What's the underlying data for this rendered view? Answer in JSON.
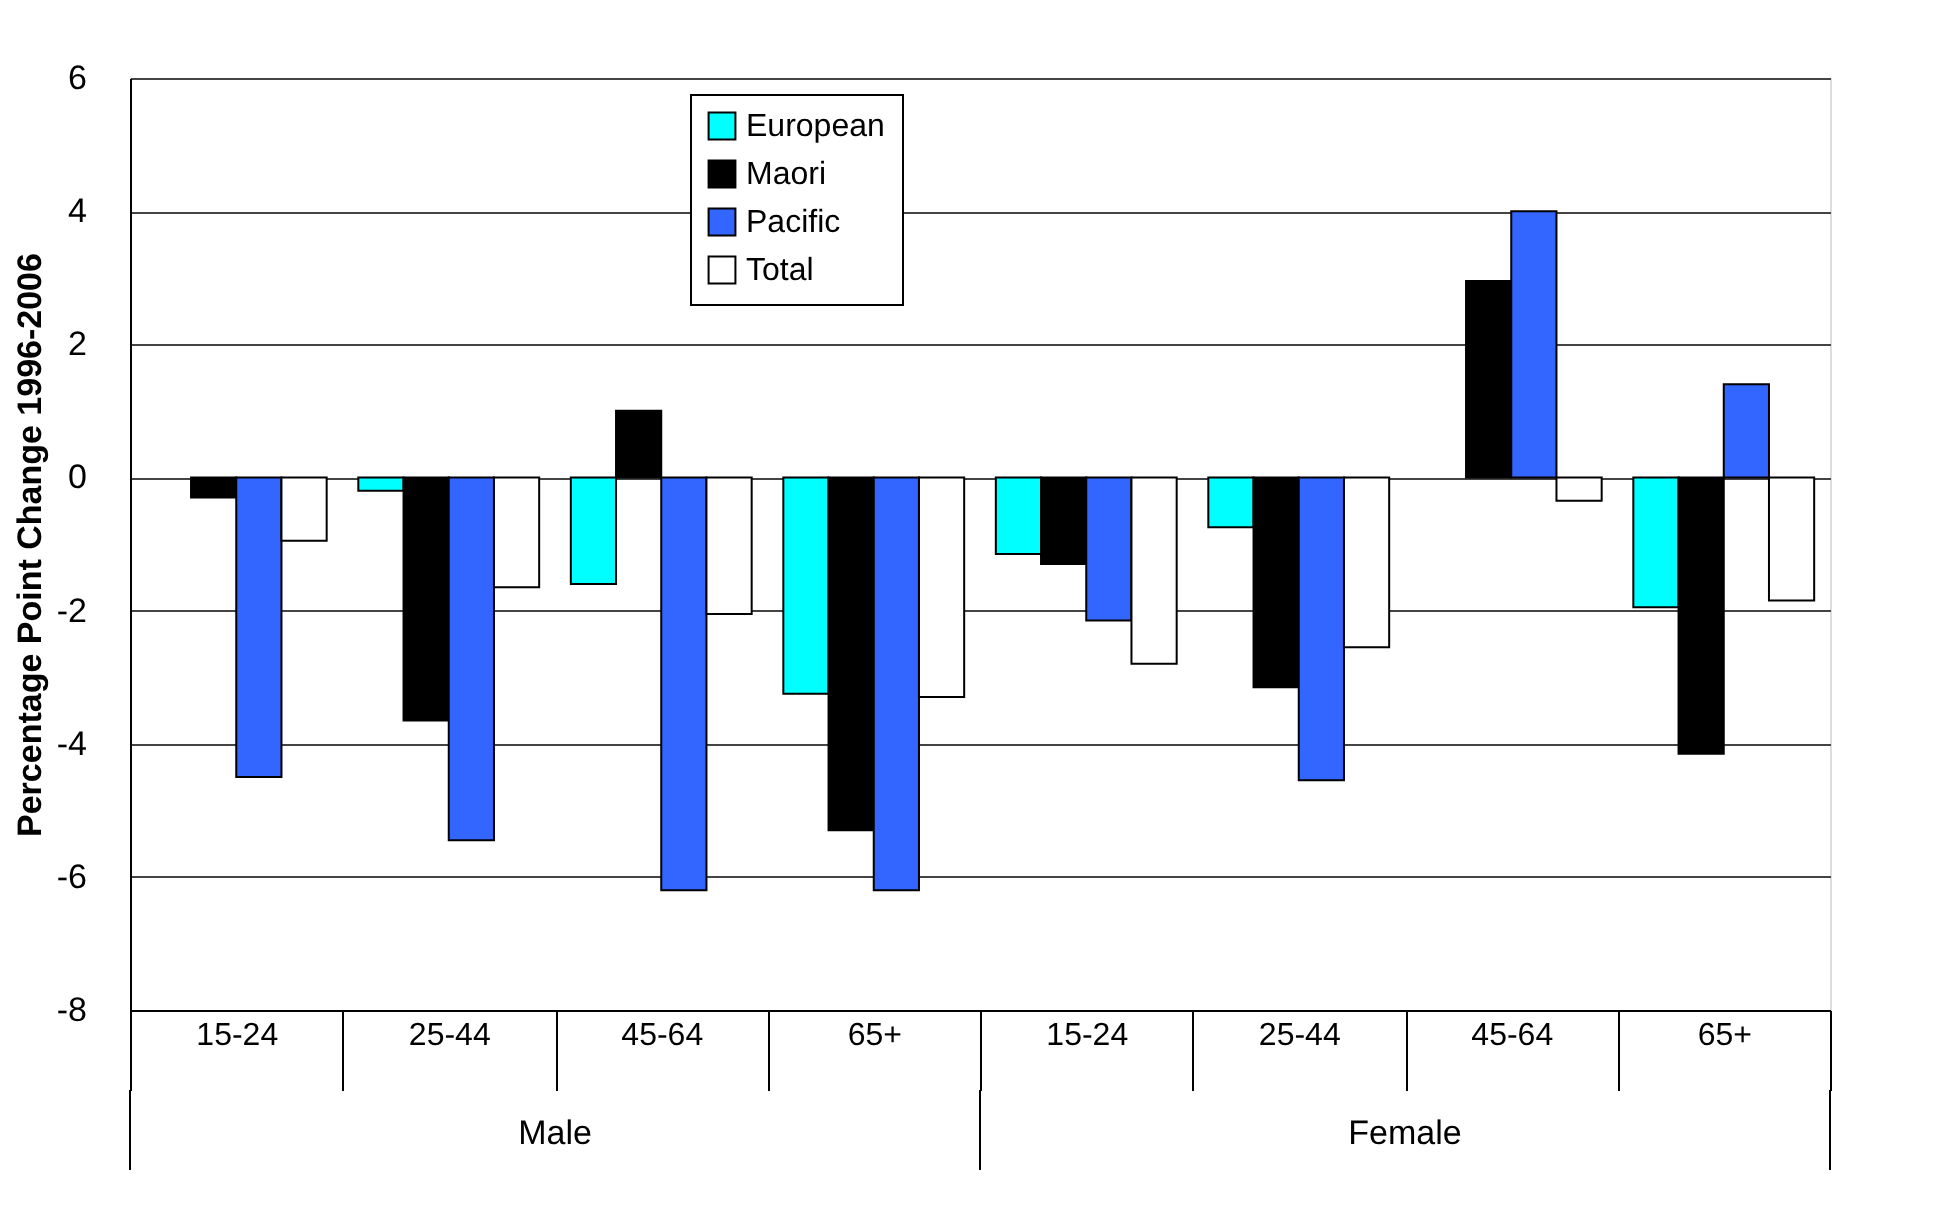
{
  "chart_data": {
    "type": "bar",
    "ylabel": "Percentage Point Change 1996-2006",
    "categories": [
      "15-24",
      "25-44",
      "45-64",
      "65+",
      "15-24",
      "25-44",
      "45-64",
      "65+"
    ],
    "annotations": [
      "Male",
      "Female"
    ],
    "series": [
      {
        "name": "European",
        "color": "#00ffff",
        "values": [
          null,
          -0.2,
          -1.6,
          -3.25,
          -1.15,
          -0.75,
          null,
          -1.95
        ]
      },
      {
        "name": "Maori",
        "color": "#000000",
        "values": [
          -0.3,
          -3.65,
          1.0,
          -5.3,
          -1.3,
          -3.15,
          2.95,
          -4.15
        ]
      },
      {
        "name": "Pacific",
        "color": "#3366ff",
        "values": [
          -4.5,
          -5.45,
          -6.2,
          -6.2,
          -2.15,
          -4.55,
          4.0,
          1.4
        ]
      },
      {
        "name": "Total",
        "color": "#ffffff",
        "values": [
          -0.95,
          -1.65,
          -2.05,
          -3.3,
          -2.8,
          -2.55,
          -0.35,
          -1.85
        ]
      }
    ],
    "ylim": [
      -8,
      6
    ],
    "yticks": [
      -8,
      -6,
      -4,
      -2,
      0,
      2,
      4,
      6
    ],
    "grid": "y",
    "legend": "top"
  }
}
